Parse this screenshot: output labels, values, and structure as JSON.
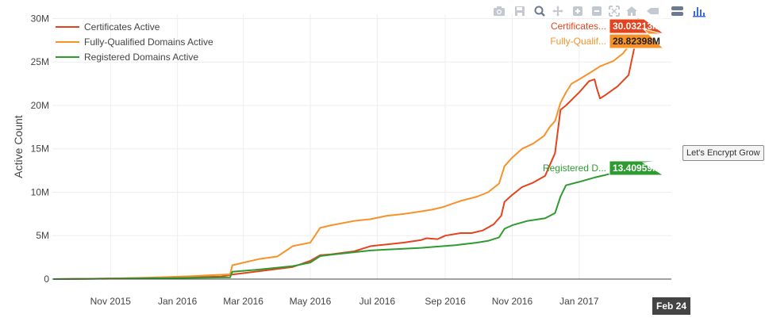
{
  "toolbar": {
    "icons": [
      "camera-icon",
      "save-icon",
      "zoom-icon",
      "pan-icon",
      "zoom-in-icon",
      "zoom-out-icon",
      "autoscale-icon",
      "home-icon",
      "spike-lines-icon",
      "compare-icon",
      "plotly-logo-icon"
    ]
  },
  "side_tooltip": "Let's Encrypt Grow",
  "x_hover_label": "Feb 24",
  "chart_data": {
    "type": "line",
    "title": "",
    "xlabel": "",
    "ylabel": "Active Count",
    "ylim": [
      0,
      30500000
    ],
    "y_ticks": [
      0,
      5000000,
      10000000,
      15000000,
      20000000,
      25000000,
      30000000
    ],
    "y_tick_labels": [
      "0",
      "5M",
      "10M",
      "15M",
      "20M",
      "25M",
      "30M"
    ],
    "x_range": [
      "2015-09-09",
      "2017-03-26"
    ],
    "x_ticks": [
      "2015-11-01",
      "2016-01-01",
      "2016-03-01",
      "2016-05-01",
      "2016-07-01",
      "2016-09-01",
      "2016-11-01",
      "2017-01-01"
    ],
    "x_tick_labels": [
      "Nov 2015",
      "Jan 2016",
      "Mar 2016",
      "May 2016",
      "Jul 2016",
      "Sep 2016",
      "Nov 2016",
      "Jan 2017"
    ],
    "grid": true,
    "legend_position": "top-left",
    "series": [
      {
        "name": "Certificates Active",
        "color": "#e5431e",
        "hover_label": "Certificates...",
        "hover_value": "30.03213M",
        "x": [
          "2015-09-10",
          "2015-10-15",
          "2015-11-15",
          "2015-12-15",
          "2016-01-15",
          "2016-02-10",
          "2016-02-20",
          "2016-03-15",
          "2016-04-15",
          "2016-05-01",
          "2016-05-10",
          "2016-05-20",
          "2016-06-10",
          "2016-06-25",
          "2016-07-10",
          "2016-07-25",
          "2016-08-10",
          "2016-08-15",
          "2016-08-25",
          "2016-09-01",
          "2016-09-15",
          "2016-09-25",
          "2016-10-05",
          "2016-10-15",
          "2016-10-22",
          "2016-10-25",
          "2016-11-01",
          "2016-11-10",
          "2016-11-20",
          "2016-12-01",
          "2016-12-10",
          "2016-12-15",
          "2016-12-20",
          "2017-01-01",
          "2017-01-10",
          "2017-01-15",
          "2017-01-17",
          "2017-01-20",
          "2017-01-25",
          "2017-02-05",
          "2017-02-15",
          "2017-02-20",
          "2017-02-24"
        ],
        "values": [
          0,
          50000,
          100000,
          150000,
          220000,
          300000,
          520000,
          900000,
          1400000,
          2100000,
          2750000,
          2850000,
          3200000,
          3800000,
          4000000,
          4200000,
          4500000,
          4700000,
          4600000,
          5000000,
          5300000,
          5300000,
          5600000,
          6300000,
          7300000,
          8900000,
          9700000,
          10600000,
          11100000,
          11900000,
          14500000,
          19500000,
          20000000,
          21500000,
          22800000,
          23000000,
          22000000,
          20800000,
          21200000,
          22200000,
          23500000,
          26500000,
          30032130
        ]
      },
      {
        "name": "Fully-Qualified Domains Active",
        "color": "#f7922b",
        "hover_label": "Fully-Qualif...",
        "hover_value": "28.82398M",
        "x": [
          "2015-09-10",
          "2015-10-15",
          "2015-11-15",
          "2015-12-15",
          "2016-01-15",
          "2016-02-18",
          "2016-02-20",
          "2016-03-15",
          "2016-04-01",
          "2016-04-15",
          "2016-05-01",
          "2016-05-10",
          "2016-05-20",
          "2016-06-10",
          "2016-06-25",
          "2016-07-10",
          "2016-07-25",
          "2016-08-10",
          "2016-08-20",
          "2016-08-30",
          "2016-09-15",
          "2016-09-30",
          "2016-10-10",
          "2016-10-20",
          "2016-10-25",
          "2016-11-01",
          "2016-11-10",
          "2016-11-20",
          "2016-11-30",
          "2016-12-05",
          "2016-12-10",
          "2016-12-15",
          "2016-12-20",
          "2016-12-25",
          "2017-01-01",
          "2017-01-10",
          "2017-01-20",
          "2017-02-01",
          "2017-02-10",
          "2017-02-20",
          "2017-02-24"
        ],
        "values": [
          0,
          50000,
          100000,
          200000,
          350000,
          550000,
          1600000,
          2300000,
          2600000,
          3800000,
          4200000,
          5900000,
          6200000,
          6700000,
          6900000,
          7300000,
          7500000,
          7800000,
          8000000,
          8300000,
          9000000,
          9500000,
          10000000,
          11000000,
          13000000,
          14000000,
          15000000,
          15600000,
          16500000,
          17500000,
          18200000,
          20300000,
          21500000,
          22500000,
          23000000,
          23700000,
          24500000,
          25100000,
          26000000,
          27600000,
          28823980
        ]
      },
      {
        "name": "Registered Domains Active",
        "color": "#2e9b30",
        "hover_label": "Registered D...",
        "hover_value": "13.40959M",
        "x": [
          "2015-09-10",
          "2015-10-15",
          "2015-11-15",
          "2015-12-15",
          "2016-01-15",
          "2016-02-18",
          "2016-02-20",
          "2016-03-15",
          "2016-04-15",
          "2016-05-01",
          "2016-05-10",
          "2016-05-20",
          "2016-06-10",
          "2016-06-25",
          "2016-07-10",
          "2016-08-10",
          "2016-09-10",
          "2016-09-30",
          "2016-10-10",
          "2016-10-20",
          "2016-10-25",
          "2016-11-01",
          "2016-11-15",
          "2016-12-01",
          "2016-12-10",
          "2016-12-15",
          "2016-12-20",
          "2017-01-01",
          "2017-01-15",
          "2017-02-01",
          "2017-02-15",
          "2017-02-24"
        ],
        "values": [
          0,
          30000,
          70000,
          100000,
          150000,
          200000,
          850000,
          1100000,
          1500000,
          1900000,
          2650000,
          2800000,
          3100000,
          3300000,
          3400000,
          3600000,
          3900000,
          4200000,
          4400000,
          4800000,
          5800000,
          6200000,
          6700000,
          7000000,
          7600000,
          9500000,
          10800000,
          11200000,
          11700000,
          12200000,
          12700000,
          13409590
        ]
      }
    ]
  }
}
